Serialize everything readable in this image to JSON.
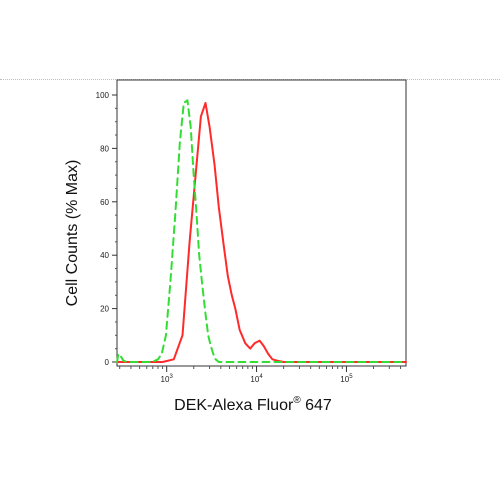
{
  "chart_data": {
    "type": "line",
    "xlabel": "DEK-Alexa Fluor",
    "xlabel_sup": "®",
    "xlabel_suffix": " 647",
    "ylabel": "Cell Counts (% Max)",
    "x_scale": "log",
    "xlim": [
      280,
      460000
    ],
    "ylim": [
      0,
      100
    ],
    "y_ticks": [
      0,
      20,
      40,
      60,
      80,
      100
    ],
    "x_ticks": [
      {
        "value": 1000,
        "base": "10",
        "exp": "3"
      },
      {
        "value": 10000,
        "base": "10",
        "exp": "4"
      },
      {
        "value": 100000,
        "base": "10",
        "exp": "5"
      }
    ],
    "grid": false,
    "legend": "none",
    "series": [
      {
        "color": "#ff2a2a",
        "style": "solid",
        "x": [
          280,
          900,
          1200,
          1500,
          1800,
          2100,
          2400,
          2700,
          3000,
          3400,
          3800,
          4300,
          4800,
          5300,
          5800,
          6500,
          7500,
          8500,
          9500,
          10800,
          12000,
          13500,
          15000,
          17000,
          20000,
          30000,
          60000,
          150000,
          460000
        ],
        "y": [
          0,
          0,
          1,
          10,
          45,
          70,
          92,
          97,
          88,
          74,
          58,
          44,
          32,
          25,
          20,
          12,
          7,
          5,
          7,
          8,
          6,
          3,
          1,
          0.5,
          0,
          0,
          0,
          0,
          0
        ]
      },
      {
        "color": "#33dd33",
        "style": "dashed",
        "x": [
          280,
          290,
          310,
          330,
          360,
          400,
          450,
          500,
          560,
          640,
          720,
          800,
          880,
          980,
          1100,
          1250,
          1400,
          1550,
          1700,
          1850,
          2000,
          2150,
          2300,
          2500,
          2700,
          2900,
          3100,
          3300,
          3500,
          3800,
          4200,
          5000,
          10000,
          460000
        ],
        "y": [
          0,
          3,
          2,
          0.5,
          0,
          0,
          0,
          0,
          0,
          0,
          0.3,
          1,
          3,
          10,
          30,
          56,
          82,
          97,
          98,
          88,
          70,
          55,
          40,
          28,
          18,
          10,
          6,
          3,
          1,
          0,
          0,
          0,
          0,
          0
        ]
      }
    ]
  }
}
